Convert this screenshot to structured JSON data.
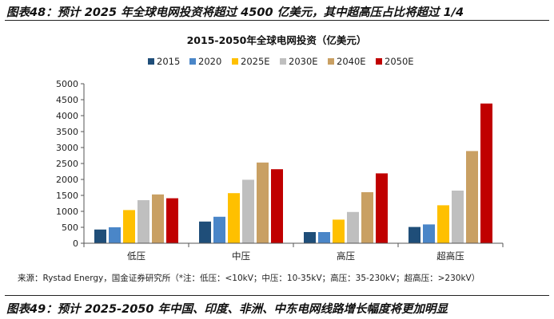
{
  "captions": {
    "top": "图表48：预计 2025 年全球电网投资将超过 4500 亿美元，其中超高压占比将超过 1/4",
    "bottom": "图表49：预计 2025-2050 年中国、印度、非洲、中东电网线路增长幅度将更加明显"
  },
  "source_note": "来源：Rystad Energy，国金证券研究所（*注：低压：<10kV；中压：10-35kV；高压：35-230kV；超高压：>230kV）",
  "chart_data": {
    "type": "bar",
    "title": "2015-2050年全球电网投资（亿美元）",
    "xlabel": "",
    "ylabel": "",
    "ylim": [
      0,
      5000
    ],
    "yticks": [
      0,
      500,
      1000,
      1500,
      2000,
      2500,
      3000,
      3500,
      4000,
      4500,
      5000
    ],
    "grid": false,
    "legend_position": "top",
    "categories": [
      "低压",
      "中压",
      "高压",
      "超高压"
    ],
    "series": [
      {
        "name": "2015",
        "color": "#1f4e79",
        "values": [
          430,
          680,
          350,
          510
        ]
      },
      {
        "name": "2020",
        "color": "#4a86c8",
        "values": [
          500,
          830,
          350,
          590
        ]
      },
      {
        "name": "2025E",
        "color": "#ffc000",
        "values": [
          1040,
          1570,
          740,
          1190
        ]
      },
      {
        "name": "2030E",
        "color": "#bfbfbf",
        "values": [
          1350,
          1990,
          980,
          1650
        ]
      },
      {
        "name": "2040E",
        "color": "#c9a063",
        "values": [
          1530,
          2530,
          1600,
          2890
        ]
      },
      {
        "name": "2050E",
        "color": "#c00000",
        "values": [
          1410,
          2320,
          2190,
          4380
        ]
      }
    ]
  }
}
